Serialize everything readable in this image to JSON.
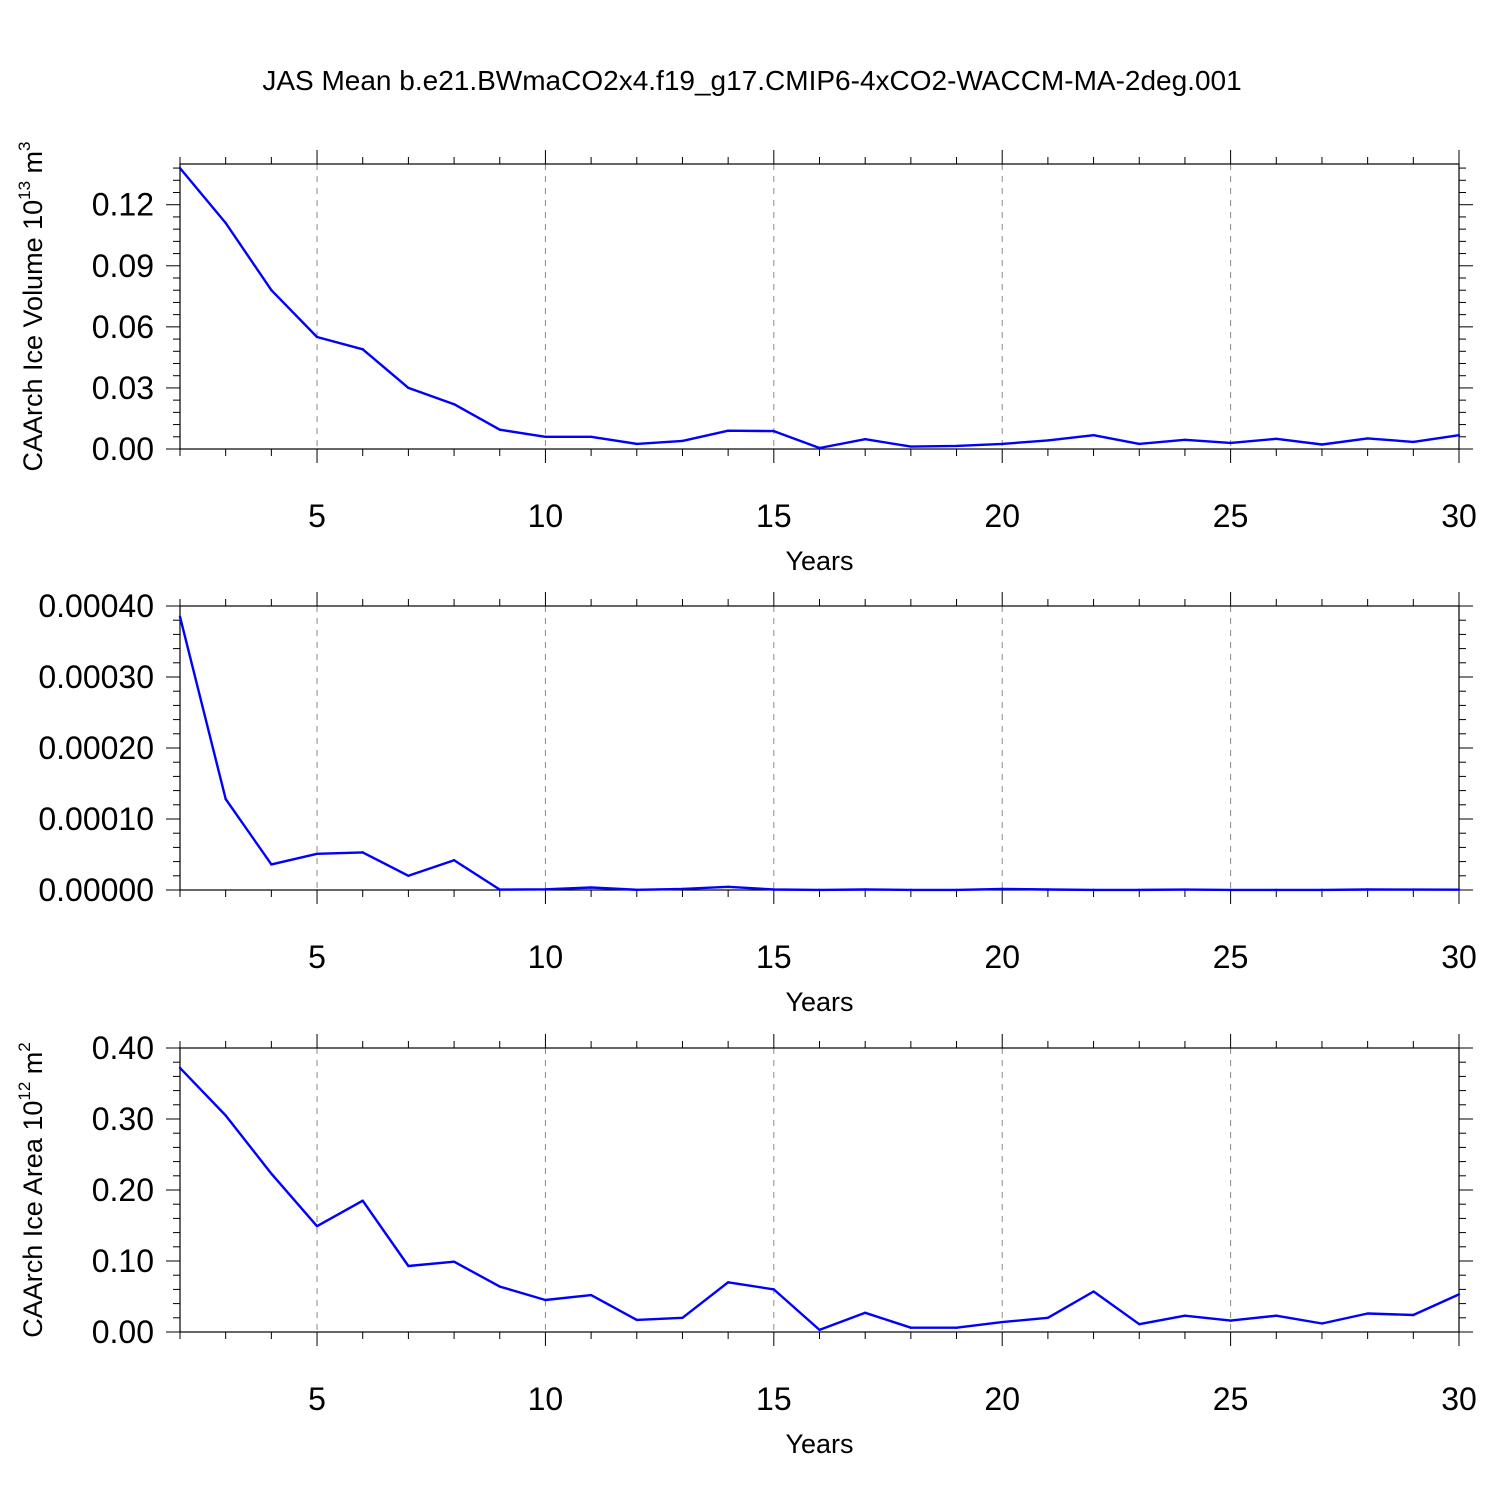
{
  "title": "JAS Mean b.e21.BWmaCO2x4.f19_g17.CMIP6-4xCO2-WACCM-MA-2deg.001",
  "colors": {
    "line": "#0000ff",
    "axis": "#000000",
    "grid": "#8a8a8a"
  },
  "chart_data": [
    {
      "type": "line",
      "xlabel": "Years",
      "ylabel": {
        "text": "CAArch Ice Volume 10",
        "exp": "13",
        "unit": " m",
        "unit_exp": "3"
      },
      "xlim": [
        2,
        30
      ],
      "ylim": [
        0,
        0.14
      ],
      "xticks": [
        5,
        10,
        15,
        20,
        25,
        30
      ],
      "xtick_labels": [
        "5",
        "10",
        "15",
        "20",
        "25",
        "30"
      ],
      "yticks": [
        0,
        0.03,
        0.06,
        0.09,
        0.12
      ],
      "ytick_labels": [
        "0.00",
        "0.03",
        "0.06",
        "0.09",
        "0.12"
      ],
      "grid": "dashed vertical at major x ticks",
      "x": [
        2,
        3,
        4,
        5,
        6,
        7,
        8,
        9,
        10,
        11,
        12,
        13,
        14,
        15,
        16,
        17,
        18,
        19,
        20,
        21,
        22,
        23,
        24,
        25,
        26,
        27,
        28,
        29,
        30
      ],
      "values": [
        0.138,
        0.111,
        0.078,
        0.055,
        0.049,
        0.03,
        0.022,
        0.0095,
        0.006,
        0.006,
        0.0025,
        0.004,
        0.009,
        0.0088,
        0.0005,
        0.0048,
        0.0012,
        0.0015,
        0.0025,
        0.0042,
        0.0068,
        0.0025,
        0.0045,
        0.003,
        0.005,
        0.0022,
        0.0052,
        0.0035,
        0.0068
      ]
    },
    {
      "type": "line",
      "xlabel": "Years",
      "ylabel": null,
      "xlim": [
        2,
        30
      ],
      "ylim": [
        0,
        0.0004
      ],
      "xticks": [
        5,
        10,
        15,
        20,
        25,
        30
      ],
      "xtick_labels": [
        "5",
        "10",
        "15",
        "20",
        "25",
        "30"
      ],
      "yticks": [
        0,
        0.0001,
        0.0002,
        0.0003,
        0.0004
      ],
      "ytick_labels": [
        "0.00000",
        "0.00010",
        "0.00020",
        "0.00030",
        "0.00040"
      ],
      "grid": "dashed vertical at major x ticks",
      "x": [
        2,
        3,
        4,
        5,
        6,
        7,
        8,
        9,
        10,
        11,
        12,
        13,
        14,
        15,
        16,
        17,
        18,
        19,
        20,
        21,
        22,
        23,
        24,
        25,
        26,
        27,
        28,
        29,
        30
      ],
      "values": [
        0.000385,
        0.000128,
        3.6e-05,
        5.1e-05,
        5.3e-05,
        2e-05,
        4.2e-05,
        5e-07,
        1e-06,
        3.5e-06,
        3e-07,
        1.5e-06,
        4.5e-06,
        7e-07,
        2e-07,
        7e-07,
        2e-07,
        2e-07,
        1.5e-06,
        7e-07,
        2e-07,
        2e-07,
        5e-07,
        1e-07,
        2e-07,
        2e-07,
        7e-07,
        6e-07,
        4e-07
      ]
    },
    {
      "type": "line",
      "xlabel": "Years",
      "ylabel": {
        "text": "CAArch Ice Area 10",
        "exp": "12",
        "unit": " m",
        "unit_exp": "2"
      },
      "xlim": [
        2,
        30
      ],
      "ylim": [
        0,
        0.4
      ],
      "xticks": [
        5,
        10,
        15,
        20,
        25,
        30
      ],
      "xtick_labels": [
        "5",
        "10",
        "15",
        "20",
        "25",
        "30"
      ],
      "yticks": [
        0,
        0.1,
        0.2,
        0.3,
        0.4
      ],
      "ytick_labels": [
        "0.00",
        "0.10",
        "0.20",
        "0.30",
        "0.40"
      ],
      "grid": "dashed vertical at major x ticks",
      "x": [
        2,
        3,
        4,
        5,
        6,
        7,
        8,
        9,
        10,
        11,
        12,
        13,
        14,
        15,
        16,
        17,
        18,
        19,
        20,
        21,
        22,
        23,
        24,
        25,
        26,
        27,
        28,
        29,
        30
      ],
      "values": [
        0.372,
        0.305,
        0.223,
        0.149,
        0.185,
        0.093,
        0.099,
        0.064,
        0.045,
        0.052,
        0.017,
        0.02,
        0.07,
        0.06,
        0.003,
        0.027,
        0.006,
        0.006,
        0.014,
        0.02,
        0.057,
        0.011,
        0.023,
        0.016,
        0.023,
        0.012,
        0.026,
        0.024,
        0.053
      ]
    }
  ]
}
